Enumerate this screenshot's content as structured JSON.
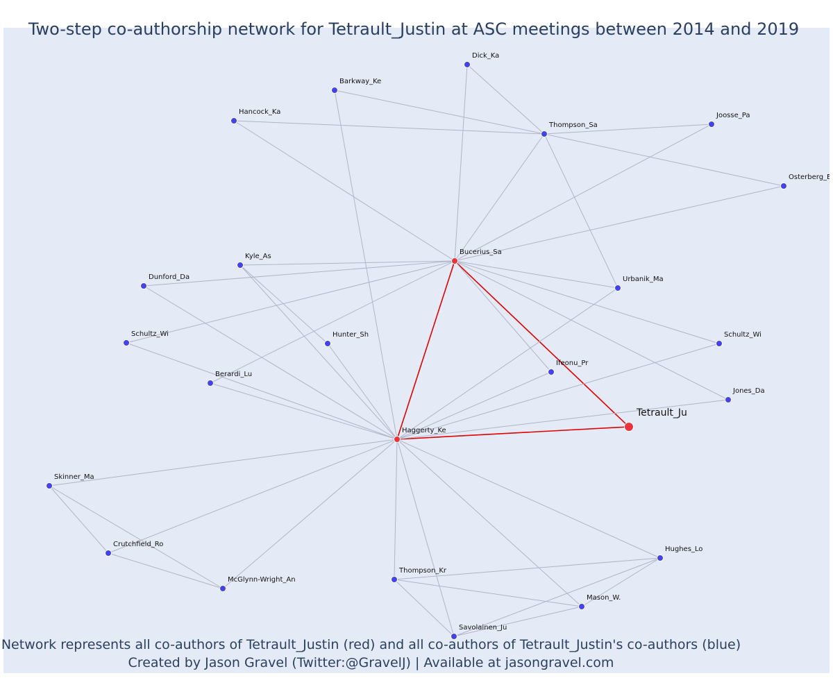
{
  "title": "Two-step co-authorship network for Tetrault_Justin at ASC meetings between 2014 and 2019",
  "caption_line1": "Network represents all co-authors of Tetrault_Justin (red) and all co-authors of Tetrault_Justin's co-authors (blue)",
  "caption_line2": "Created by Jason Gravel (Twitter:@GravelJ) | Available at jasongravel.com",
  "colors": {
    "background": "#e5ebf6",
    "red_node": "#e8343a",
    "blue_node": "#4343e8",
    "red_edge": "#e00000",
    "gray_edge": "#b0b4c8",
    "title": "#2a3f5f"
  },
  "nodes": [
    {
      "id": "Tetrault_Ju",
      "label": "Tetrault_Ju",
      "group": "focal"
    },
    {
      "id": "Bucerius_Sa",
      "label": "Bucerius_Sa",
      "group": "red"
    },
    {
      "id": "Haggerty_Ke",
      "label": "Haggerty_Ke",
      "group": "red"
    },
    {
      "id": "Dick_Ka",
      "label": "Dick_Ka",
      "group": "blue"
    },
    {
      "id": "Barkway_Ke",
      "label": "Barkway_Ke",
      "group": "blue"
    },
    {
      "id": "Hancock_Ka",
      "label": "Hancock_Ka",
      "group": "blue"
    },
    {
      "id": "Thompson_Sa",
      "label": "Thompson_Sa",
      "group": "blue"
    },
    {
      "id": "Joosse_Pa",
      "label": "Joosse_Pa",
      "group": "blue"
    },
    {
      "id": "Osterberg_Er",
      "label": "Osterberg_Er",
      "group": "blue"
    },
    {
      "id": "Kyle_As",
      "label": "Kyle_As",
      "group": "blue"
    },
    {
      "id": "Dunford_Da",
      "label": "Dunford_Da",
      "group": "blue"
    },
    {
      "id": "Urbanik_Ma",
      "label": "Urbanik_Ma",
      "group": "blue"
    },
    {
      "id": "Schultz_Wi_L",
      "label": "Schultz_Wi",
      "group": "blue"
    },
    {
      "id": "Hunter_Sh",
      "label": "Hunter_Sh",
      "group": "blue"
    },
    {
      "id": "Schultz_Wi_R",
      "label": "Schultz_Wi",
      "group": "blue"
    },
    {
      "id": "Berardi_Lu",
      "label": "Berardi_Lu",
      "group": "blue"
    },
    {
      "id": "Ifeonu_Pr",
      "label": "Ifeonu_Pr",
      "group": "blue"
    },
    {
      "id": "Jones_Da",
      "label": "Jones_Da",
      "group": "blue"
    },
    {
      "id": "Skinner_Ma",
      "label": "Skinner_Ma",
      "group": "blue"
    },
    {
      "id": "Crutchfield_Ro",
      "label": "Crutchfield_Ro",
      "group": "blue"
    },
    {
      "id": "McGlynn-Wright_An",
      "label": "McGlynn-Wright_An",
      "group": "blue"
    },
    {
      "id": "Thompson_Kr",
      "label": "Thompson_Kr",
      "group": "blue"
    },
    {
      "id": "Hughes_Lo",
      "label": "Hughes_Lo",
      "group": "blue"
    },
    {
      "id": "Mason_W.",
      "label": "Mason_W.",
      "group": "blue"
    },
    {
      "id": "Savolainen_Ju",
      "label": "Savolainen_Ju",
      "group": "blue"
    }
  ],
  "edges": [
    [
      "Bucerius_Sa",
      "Tetrault_Ju"
    ],
    [
      "Haggerty_Ke",
      "Tetrault_Ju"
    ],
    [
      "Bucerius_Sa",
      "Haggerty_Ke"
    ],
    [
      "Dick_Ka",
      "Thompson_Sa"
    ],
    [
      "Dick_Ka",
      "Bucerius_Sa"
    ],
    [
      "Barkway_Ke",
      "Thompson_Sa"
    ],
    [
      "Barkway_Ke",
      "Haggerty_Ke"
    ],
    [
      "Hancock_Ka",
      "Thompson_Sa"
    ],
    [
      "Hancock_Ka",
      "Bucerius_Sa"
    ],
    [
      "Thompson_Sa",
      "Joosse_Pa"
    ],
    [
      "Thompson_Sa",
      "Osterberg_Er"
    ],
    [
      "Thompson_Sa",
      "Bucerius_Sa"
    ],
    [
      "Thompson_Sa",
      "Urbanik_Ma"
    ],
    [
      "Joosse_Pa",
      "Bucerius_Sa"
    ],
    [
      "Osterberg_Er",
      "Bucerius_Sa"
    ],
    [
      "Kyle_As",
      "Bucerius_Sa"
    ],
    [
      "Kyle_As",
      "Haggerty_Ke"
    ],
    [
      "Kyle_As",
      "Hunter_Sh"
    ],
    [
      "Dunford_Da",
      "Bucerius_Sa"
    ],
    [
      "Dunford_Da",
      "Haggerty_Ke"
    ],
    [
      "Schultz_Wi_L",
      "Bucerius_Sa"
    ],
    [
      "Schultz_Wi_L",
      "Haggerty_Ke"
    ],
    [
      "Berardi_Lu",
      "Bucerius_Sa"
    ],
    [
      "Berardi_Lu",
      "Haggerty_Ke"
    ],
    [
      "Hunter_Sh",
      "Haggerty_Ke"
    ],
    [
      "Urbanik_Ma",
      "Bucerius_Sa"
    ],
    [
      "Urbanik_Ma",
      "Haggerty_Ke"
    ],
    [
      "Ifeonu_Pr",
      "Bucerius_Sa"
    ],
    [
      "Ifeonu_Pr",
      "Haggerty_Ke"
    ],
    [
      "Schultz_Wi_R",
      "Bucerius_Sa"
    ],
    [
      "Schultz_Wi_R",
      "Haggerty_Ke"
    ],
    [
      "Jones_Da",
      "Bucerius_Sa"
    ],
    [
      "Jones_Da",
      "Haggerty_Ke"
    ],
    [
      "Skinner_Ma",
      "Haggerty_Ke"
    ],
    [
      "Skinner_Ma",
      "Crutchfield_Ro"
    ],
    [
      "Skinner_Ma",
      "McGlynn-Wright_An"
    ],
    [
      "Crutchfield_Ro",
      "Haggerty_Ke"
    ],
    [
      "Crutchfield_Ro",
      "McGlynn-Wright_An"
    ],
    [
      "McGlynn-Wright_An",
      "Haggerty_Ke"
    ],
    [
      "Thompson_Kr",
      "Haggerty_Ke"
    ],
    [
      "Thompson_Kr",
      "Hughes_Lo"
    ],
    [
      "Thompson_Kr",
      "Mason_W."
    ],
    [
      "Thompson_Kr",
      "Savolainen_Ju"
    ],
    [
      "Hughes_Lo",
      "Haggerty_Ke"
    ],
    [
      "Hughes_Lo",
      "Savolainen_Ju"
    ],
    [
      "Hughes_Lo",
      "Mason_W."
    ],
    [
      "Mason_W.",
      "Haggerty_Ke"
    ],
    [
      "Mason_W.",
      "Savolainen_Ju"
    ],
    [
      "Savolainen_Ju",
      "Haggerty_Ke"
    ]
  ]
}
